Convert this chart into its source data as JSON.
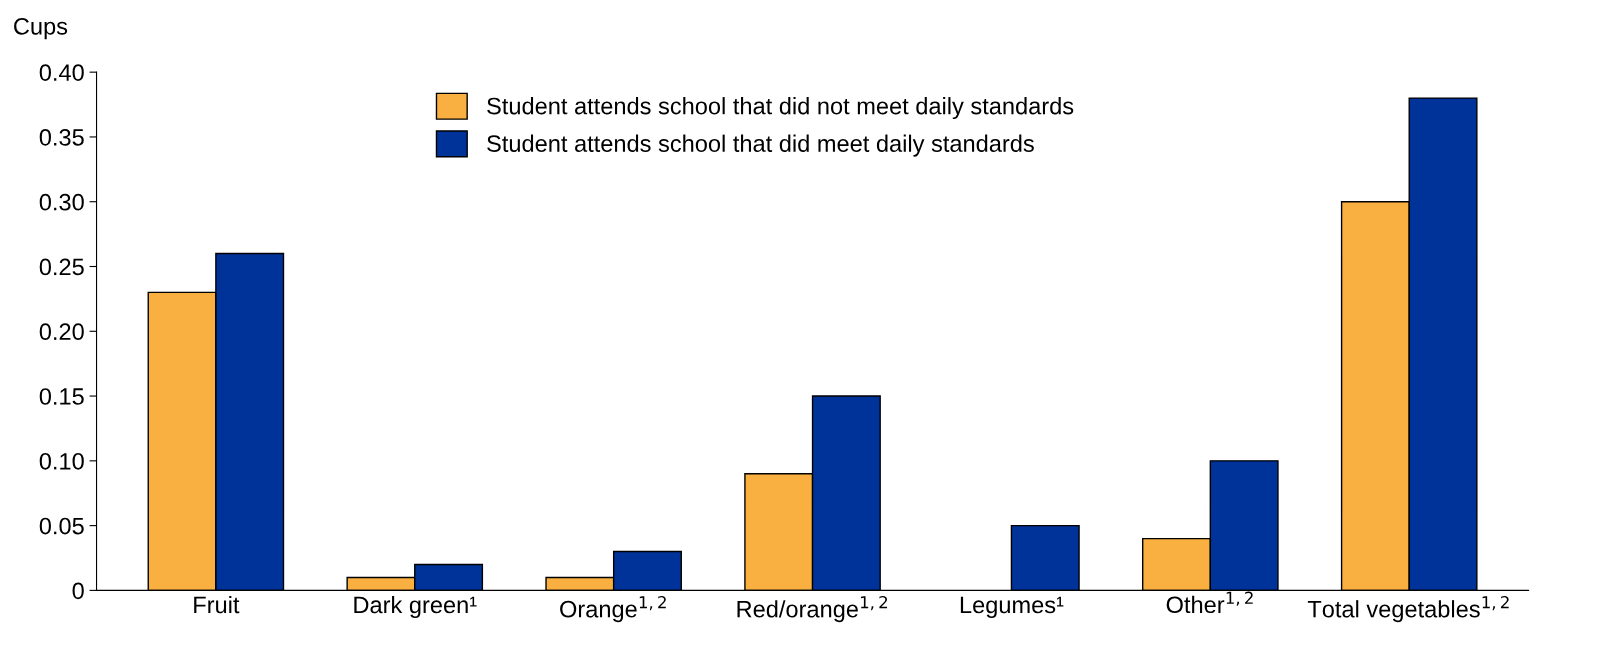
{
  "chart_data": {
    "type": "bar",
    "ylabel": "Cups",
    "categories": [
      "Fruit",
      "Dark green¹",
      "Orange$^{1,2}$",
      "Red/orange$^{1,2}$",
      "Legumes¹",
      "Other$^{1,2}$",
      "Total vegetables$^{1,2}$"
    ],
    "series": [
      {
        "name": "Student attends school that did not meet daily standards",
        "color": "#f9b040",
        "values": [
          0.23,
          0.01,
          0.01,
          0.09,
          null,
          0.04,
          0.3
        ]
      },
      {
        "name": "Student attends school that did meet daily standards",
        "color": "#003399",
        "values": [
          0.26,
          0.02,
          0.03,
          0.15,
          0.05,
          0.1,
          0.38
        ]
      }
    ],
    "ylim": [
      0,
      0.4
    ],
    "yticks": [
      0,
      {
        "value": 0.05,
        "label": "0.05"
      },
      {
        "value": 0.1,
        "label": "0.10"
      },
      {
        "value": 0.15,
        "label": "0.15"
      },
      {
        "value": 0.2,
        "label": "0.20"
      },
      {
        "value": 0.25,
        "label": "0.25"
      },
      {
        "value": 0.3,
        "label": "0.30"
      },
      {
        "value": 0.35,
        "label": "0.35"
      },
      {
        "value": 0.4,
        "label": "0.40"
      }
    ],
    "grid": false,
    "legend": "top"
  }
}
